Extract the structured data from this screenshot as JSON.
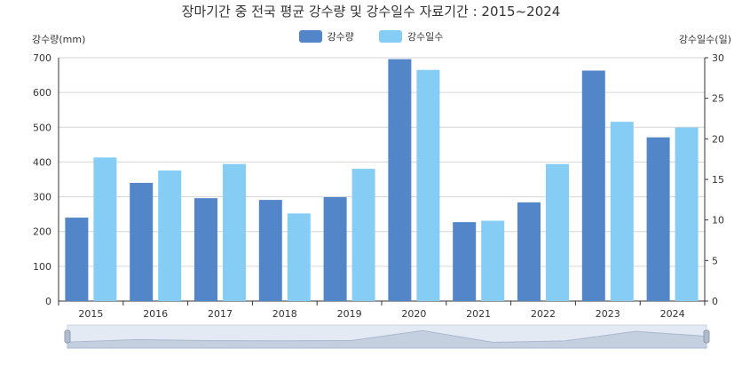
{
  "chart_data": {
    "type": "bar",
    "title": "장마기간 중 전국 평균 강수량 및 강수일수 자료기간 : 2015~2024",
    "ylabel": "강수량(mm)",
    "y2label": "강수일수(일)",
    "categories": [
      "2015",
      "2016",
      "2017",
      "2018",
      "2019",
      "2020",
      "2021",
      "2022",
      "2023",
      "2024"
    ],
    "ylim": [
      0,
      700
    ],
    "y2lim": [
      0,
      30
    ],
    "y_ticks": [
      0,
      100,
      200,
      300,
      400,
      500,
      600,
      700
    ],
    "y2_ticks": [
      0,
      5,
      10,
      15,
      20,
      25,
      30
    ],
    "grid": true,
    "legend_position": "top-center",
    "series": [
      {
        "name": "강수량",
        "axis": "left",
        "color": "#5286c9",
        "values": [
          240,
          340,
          296,
          291,
          299,
          696,
          227,
          284,
          663,
          471
        ]
      },
      {
        "name": "강수일수",
        "axis": "right",
        "color": "#86cdf5",
        "values": [
          17.7,
          16.1,
          16.9,
          10.8,
          16.3,
          28.5,
          9.9,
          16.9,
          22.1,
          21.4
        ]
      }
    ]
  },
  "zoom_slider": {
    "range_start": 0,
    "range_end": 100
  }
}
